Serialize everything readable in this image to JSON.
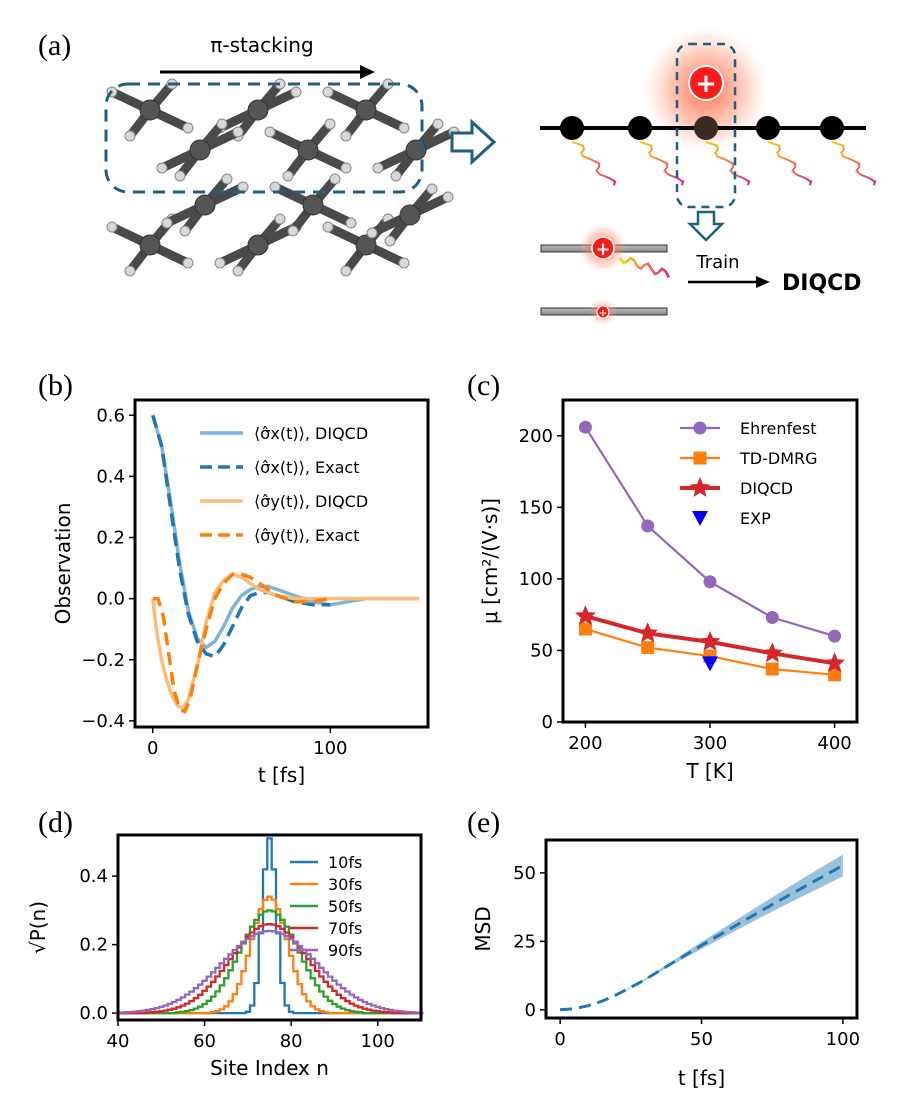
{
  "panels": {
    "a": {
      "label": "(a)",
      "stacking_label": "π-stacking",
      "train_label": "Train",
      "model_label": "DIQCD",
      "charge_symbol": "+"
    }
  },
  "colors": {
    "blue": "#1f77b4",
    "orange": "#ff7f0e",
    "green": "#2ca02c",
    "red": "#d62728",
    "purple": "#9467bd",
    "light_blue": "#7fb3d8",
    "light_orange": "#ffbb78",
    "box_dash": "#1f5f7f",
    "exp_blue": "#0000ff",
    "mol_dark": "#4a4a4a",
    "mol_light": "#d8d8d8"
  },
  "chart_data": [
    {
      "panel": "(b)",
      "type": "line",
      "xlabel": "t [fs]",
      "ylabel": "Observation",
      "xlim": [
        -10,
        155
      ],
      "ylim": [
        -0.42,
        0.65
      ],
      "xticks": [
        0,
        100
      ],
      "xtick_labels": [
        "0",
        "100"
      ],
      "yticks": [
        -0.4,
        -0.2,
        0.0,
        0.2,
        0.4,
        0.6
      ],
      "ytick_labels": [
        "−0.4",
        "−0.2",
        "0.0",
        "0.2",
        "0.4",
        "0.6"
      ],
      "series": [
        {
          "name": "⟨σ̂x(t)⟩, DIQCD",
          "style": "solid",
          "color": "light_blue",
          "x": [
            0,
            5,
            10,
            15,
            20,
            25,
            30,
            35,
            40,
            45,
            50,
            55,
            60,
            65,
            70,
            80,
            90,
            100,
            110,
            120,
            130,
            140,
            150
          ],
          "y": [
            0.6,
            0.5,
            0.32,
            0.12,
            -0.04,
            -0.13,
            -0.16,
            -0.14,
            -0.09,
            -0.03,
            0.01,
            0.03,
            0.04,
            0.04,
            0.03,
            0.01,
            -0.01,
            -0.02,
            -0.01,
            0.0,
            0.0,
            0.0,
            0.0
          ]
        },
        {
          "name": "⟨σ̂x(t)⟩, Exact",
          "style": "dashed",
          "color": "blue",
          "x": [
            0,
            5,
            10,
            15,
            20,
            25,
            30,
            35,
            40,
            45,
            50,
            55,
            60,
            65,
            70,
            80,
            90,
            100
          ],
          "y": [
            0.6,
            0.5,
            0.3,
            0.1,
            -0.05,
            -0.14,
            -0.18,
            -0.19,
            -0.15,
            -0.09,
            -0.03,
            0.01,
            0.02,
            0.02,
            0.01,
            -0.01,
            -0.02,
            -0.02
          ]
        },
        {
          "name": "⟨σ̂y(t)⟩, DIQCD",
          "style": "solid",
          "color": "light_orange",
          "x": [
            0,
            2,
            5,
            8,
            11,
            14,
            17,
            20,
            25,
            30,
            35,
            40,
            45,
            50,
            55,
            60,
            65,
            70,
            80,
            90,
            100,
            110,
            120,
            130,
            140,
            150
          ],
          "y": [
            0.0,
            -0.1,
            -0.2,
            -0.27,
            -0.32,
            -0.35,
            -0.36,
            -0.33,
            -0.22,
            -0.08,
            0.02,
            0.06,
            0.08,
            0.07,
            0.05,
            0.03,
            0.02,
            0.01,
            0.0,
            0.0,
            0.0,
            0.0,
            0.0,
            0.0,
            0.0,
            0.0
          ]
        },
        {
          "name": "⟨σ̂y(t)⟩, Exact",
          "style": "dashed",
          "color": "orange",
          "x": [
            0,
            3,
            6,
            9,
            12,
            15,
            18,
            21,
            25,
            30,
            35,
            40,
            45,
            50,
            55,
            60,
            65,
            70,
            80,
            90,
            100
          ],
          "y": [
            0.0,
            0.0,
            -0.06,
            -0.18,
            -0.3,
            -0.36,
            -0.37,
            -0.33,
            -0.22,
            -0.1,
            0.0,
            0.05,
            0.08,
            0.08,
            0.07,
            0.05,
            0.03,
            0.01,
            -0.01,
            -0.01,
            0.0
          ]
        }
      ]
    },
    {
      "panel": "(c)",
      "type": "line",
      "xlabel": "T [K]",
      "ylabel": "μ [cm²/(V·s)]",
      "xlim": [
        182,
        418
      ],
      "ylim": [
        0,
        225
      ],
      "xticks": [
        200,
        300,
        400
      ],
      "xtick_labels": [
        "200",
        "300",
        "400"
      ],
      "yticks": [
        0,
        50,
        100,
        150,
        200
      ],
      "ytick_labels": [
        "0",
        "50",
        "100",
        "150",
        "200"
      ],
      "series": [
        {
          "name": "Ehrenfest",
          "marker": "circle",
          "color": "purple",
          "x": [
            200,
            250,
            300,
            350,
            400
          ],
          "y": [
            206,
            137,
            98,
            73,
            60
          ]
        },
        {
          "name": "TD-DMRG",
          "marker": "square",
          "color": "orange",
          "x": [
            200,
            250,
            300,
            350,
            400
          ],
          "y": [
            65,
            52,
            46,
            37,
            33
          ]
        },
        {
          "name": "DIQCD",
          "marker": "star",
          "color": "red",
          "x": [
            200,
            250,
            300,
            350,
            400
          ],
          "y": [
            74,
            62,
            56,
            48,
            41
          ]
        },
        {
          "name": "EXP",
          "marker": "triangle-down",
          "color": "exp_blue",
          "x": [
            300
          ],
          "y": [
            41
          ]
        }
      ]
    },
    {
      "panel": "(d)",
      "type": "line",
      "xlabel": "Site Index n",
      "ylabel": "√P(n)",
      "xlim": [
        40,
        110
      ],
      "ylim": [
        -0.02,
        0.52
      ],
      "xticks": [
        40,
        60,
        80,
        100
      ],
      "xtick_labels": [
        "40",
        "60",
        "80",
        "100"
      ],
      "yticks": [
        0.0,
        0.2,
        0.4
      ],
      "ytick_labels": [
        "0.0",
        "0.2",
        "0.4"
      ],
      "center": 75,
      "series": [
        {
          "name": "10fs",
          "color": "blue",
          "peak": 0.51,
          "sigma": 1.6
        },
        {
          "name": "30fs",
          "color": "orange",
          "peak": 0.34,
          "sigma": 4.2
        },
        {
          "name": "50fs",
          "color": "green",
          "peak": 0.3,
          "sigma": 6.8
        },
        {
          "name": "70fs",
          "color": "red",
          "peak": 0.26,
          "sigma": 9.0
        },
        {
          "name": "90fs",
          "color": "purple",
          "peak": 0.24,
          "sigma": 11.0
        }
      ]
    },
    {
      "panel": "(e)",
      "type": "area",
      "xlabel": "t [fs]",
      "ylabel": "MSD",
      "xlim": [
        -5,
        105
      ],
      "ylim": [
        -3,
        62
      ],
      "xticks": [
        0,
        50,
        100
      ],
      "xtick_labels": [
        "0",
        "50",
        "100"
      ],
      "yticks": [
        0,
        25,
        50
      ],
      "ytick_labels": [
        "0",
        "25",
        "50"
      ],
      "series": [
        {
          "name": "MSD mean",
          "style": "dashed",
          "color": "blue",
          "x": [
            0,
            5,
            10,
            15,
            20,
            25,
            30,
            40,
            50,
            60,
            70,
            80,
            90,
            100
          ],
          "y": [
            0,
            0.4,
            1.5,
            3.2,
            5.5,
            8.2,
            11.0,
            17.3,
            23.5,
            29.5,
            35.5,
            41.3,
            47.0,
            52.7
          ]
        },
        {
          "name": "MSD band upper",
          "x": [
            0,
            5,
            10,
            15,
            20,
            25,
            30,
            40,
            50,
            60,
            70,
            80,
            90,
            100
          ],
          "y": [
            0,
            0.4,
            1.5,
            3.2,
            5.6,
            8.4,
            11.3,
            18.0,
            24.8,
            31.3,
            37.8,
            44.3,
            50.6,
            56.7
          ]
        },
        {
          "name": "MSD band lower",
          "x": [
            0,
            5,
            10,
            15,
            20,
            25,
            30,
            40,
            50,
            60,
            70,
            80,
            90,
            100
          ],
          "y": [
            0,
            0.4,
            1.5,
            3.2,
            5.4,
            8.0,
            10.7,
            16.6,
            22.2,
            27.7,
            33.2,
            38.5,
            43.6,
            48.7
          ]
        }
      ]
    }
  ]
}
